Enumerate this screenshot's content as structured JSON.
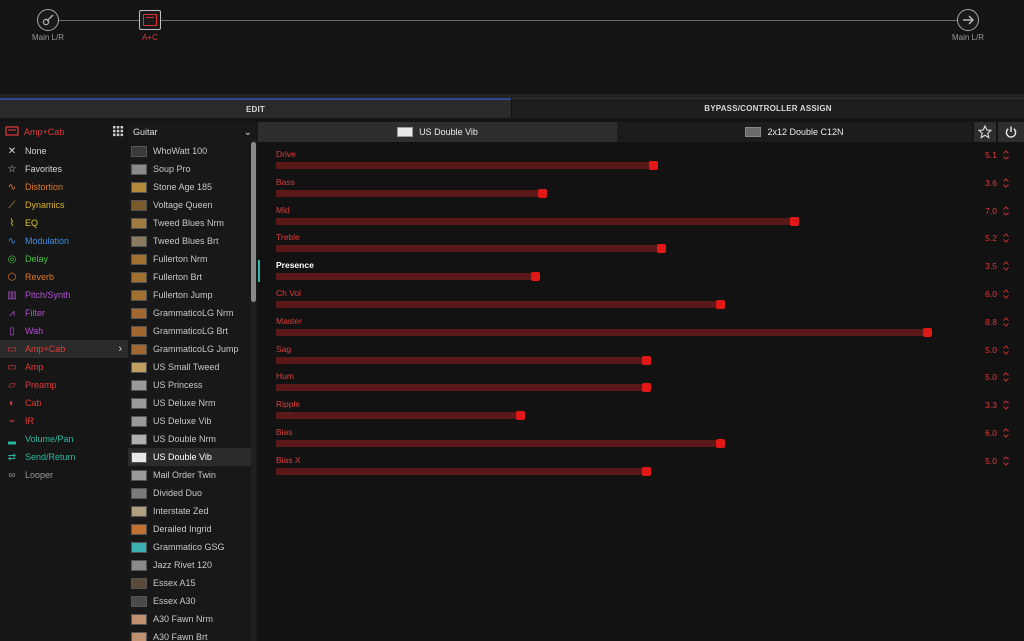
{
  "chain": {
    "input_label": "Main L/R",
    "block_label": "A+C",
    "output_label": "Main L/R"
  },
  "tabs": {
    "edit": "EDIT",
    "bypass": "BYPASS/CONTROLLER ASSIGN"
  },
  "categories": {
    "header": {
      "label": "Amp+Cab",
      "icon": "amp-cab-icon",
      "color": "#e23a3a"
    },
    "items": [
      {
        "label": "None",
        "icon": "x-icon",
        "color": "#d8d8d8"
      },
      {
        "label": "Favorites",
        "icon": "star-icon",
        "color": "#d8d8d8"
      },
      {
        "label": "Distortion",
        "icon": "distortion-icon",
        "color": "#e07a2a"
      },
      {
        "label": "Dynamics",
        "icon": "dynamics-icon",
        "color": "#d9b428"
      },
      {
        "label": "EQ",
        "icon": "eq-icon",
        "color": "#d9c628"
      },
      {
        "label": "Modulation",
        "icon": "modulation-icon",
        "color": "#3a8ee0"
      },
      {
        "label": "Delay",
        "icon": "delay-icon",
        "color": "#3cc43c"
      },
      {
        "label": "Reverb",
        "icon": "reverb-icon",
        "color": "#e07a2a"
      },
      {
        "label": "Pitch/Synth",
        "icon": "pitch-synth-icon",
        "color": "#b050d0"
      },
      {
        "label": "Filter",
        "icon": "filter-icon",
        "color": "#b050d0"
      },
      {
        "label": "Wah",
        "icon": "wah-icon",
        "color": "#b050d0"
      },
      {
        "label": "Amp+Cab",
        "icon": "amp-cab-icon",
        "color": "#e23a3a",
        "selected": true
      },
      {
        "label": "Amp",
        "icon": "amp-icon",
        "color": "#e23a3a"
      },
      {
        "label": "Preamp",
        "icon": "preamp-icon",
        "color": "#e23a3a"
      },
      {
        "label": "Cab",
        "icon": "cab-icon",
        "color": "#e23a3a"
      },
      {
        "label": "IR",
        "icon": "ir-icon",
        "color": "#e23a3a"
      },
      {
        "label": "Volume/Pan",
        "icon": "volume-pan-icon",
        "color": "#2ab8a0"
      },
      {
        "label": "Send/Return",
        "icon": "send-return-icon",
        "color": "#2ab8a0"
      },
      {
        "label": "Looper",
        "icon": "looper-icon",
        "color": "#9a9a9a"
      }
    ]
  },
  "models": {
    "header": {
      "label": "Guitar"
    },
    "items": [
      {
        "label": "WhoWatt 100",
        "thumb": "#3a3a3a"
      },
      {
        "label": "Soup Pro",
        "thumb": "#8a8a8a"
      },
      {
        "label": "Stone Age 185",
        "thumb": "#b08a3a"
      },
      {
        "label": "Voltage Queen",
        "thumb": "#7a5a2a"
      },
      {
        "label": "Tweed Blues Nrm",
        "thumb": "#a07a40"
      },
      {
        "label": "Tweed Blues Brt",
        "thumb": "#8a7a60"
      },
      {
        "label": "Fullerton Nrm",
        "thumb": "#a07030"
      },
      {
        "label": "Fullerton Brt",
        "thumb": "#a07030"
      },
      {
        "label": "Fullerton Jump",
        "thumb": "#a07030"
      },
      {
        "label": "GrammaticoLG Nrm",
        "thumb": "#a06830"
      },
      {
        "label": "GrammaticoLG Brt",
        "thumb": "#a06830"
      },
      {
        "label": "GrammaticoLG Jump",
        "thumb": "#a06830"
      },
      {
        "label": "US Small Tweed",
        "thumb": "#c0a060"
      },
      {
        "label": "US Princess",
        "thumb": "#9a9a9a"
      },
      {
        "label": "US Deluxe Nrm",
        "thumb": "#9a9a9a"
      },
      {
        "label": "US Deluxe Vib",
        "thumb": "#9a9a9a"
      },
      {
        "label": "US Double Nrm",
        "thumb": "#b0b0b0"
      },
      {
        "label": "US Double Vib",
        "thumb": "#e8e8e8",
        "selected": true
      },
      {
        "label": "Mail Order Twin",
        "thumb": "#9a9a9a"
      },
      {
        "label": "Divided Duo",
        "thumb": "#7a7a7a"
      },
      {
        "label": "Interstate Zed",
        "thumb": "#b0a080"
      },
      {
        "label": "Derailed Ingrid",
        "thumb": "#c07030"
      },
      {
        "label": "Grammatico GSG",
        "thumb": "#3ab0b0"
      },
      {
        "label": "Jazz Rivet 120",
        "thumb": "#8a8a8a"
      },
      {
        "label": "Essex A15",
        "thumb": "#5a4a3a"
      },
      {
        "label": "Essex A30",
        "thumb": "#4a4a4a"
      },
      {
        "label": "A30 Fawn Nrm",
        "thumb": "#c09070"
      },
      {
        "label": "A30 Fawn Brt",
        "thumb": "#c09070"
      }
    ]
  },
  "block": {
    "amp_tab": "US Double Vib",
    "cab_tab": "2x12 Double C12N",
    "favorite_icon": "star-icon",
    "power_icon": "power-icon"
  },
  "params": [
    {
      "name": "Drive",
      "value": "5.1",
      "level": 0.51
    },
    {
      "name": "Bass",
      "value": "3.6",
      "level": 0.36
    },
    {
      "name": "Mid",
      "value": "7.0",
      "level": 0.7
    },
    {
      "name": "Treble",
      "value": "5.2",
      "level": 0.52
    },
    {
      "name": "Presence",
      "value": "3.5",
      "level": 0.35,
      "active": true
    },
    {
      "name": "Ch Vol",
      "value": "6.0",
      "level": 0.6
    },
    {
      "name": "Master",
      "value": "8.8",
      "level": 0.88
    },
    {
      "name": "Sag",
      "value": "5.0",
      "level": 0.5
    },
    {
      "name": "Hum",
      "value": "5.0",
      "level": 0.5
    },
    {
      "name": "Ripple",
      "value": "3.3",
      "level": 0.33
    },
    {
      "name": "Bias",
      "value": "6.0",
      "level": 0.6
    },
    {
      "name": "Bias X",
      "value": "5.0",
      "level": 0.5
    }
  ]
}
